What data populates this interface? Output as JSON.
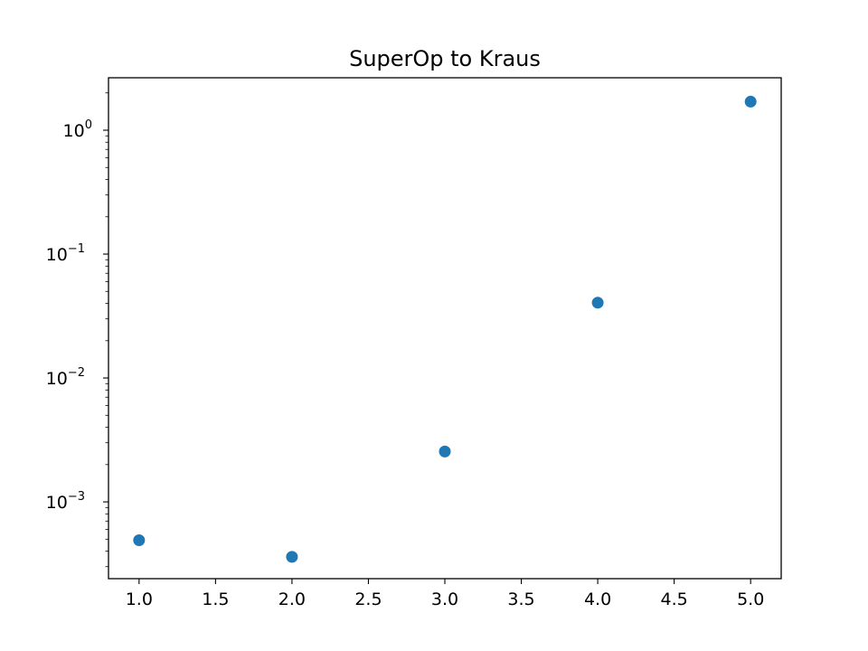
{
  "chart_data": {
    "type": "scatter",
    "title": "SuperOp to Kraus",
    "xlabel": "",
    "ylabel": "",
    "x": [
      1.0,
      2.0,
      3.0,
      4.0,
      5.0
    ],
    "y": [
      0.00049,
      0.00036,
      0.00255,
      0.0405,
      1.7
    ],
    "xlim": [
      0.8,
      5.2
    ],
    "ylim": [
      0.00024,
      2.65
    ],
    "yscale": "log",
    "x_ticks": [
      "1.0",
      "1.5",
      "2.0",
      "2.5",
      "3.0",
      "3.5",
      "4.0",
      "4.5",
      "5.0"
    ],
    "y_ticks": [
      {
        "base": "10",
        "exp": "0"
      },
      {
        "base": "10",
        "exp": "−1"
      },
      {
        "base": "10",
        "exp": "−2"
      },
      {
        "base": "10",
        "exp": "−3"
      }
    ],
    "grid": false,
    "marker_color": "#1f77b4"
  }
}
